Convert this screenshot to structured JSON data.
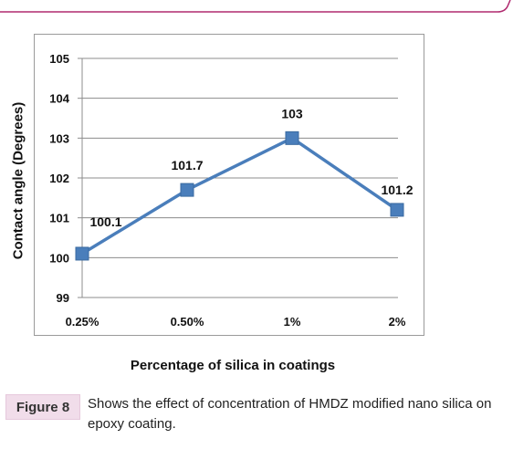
{
  "chart_data": {
    "type": "line",
    "categories": [
      "0.25%",
      "0.50%",
      "1%",
      "2%"
    ],
    "series": [
      {
        "values": [
          100.1,
          101.7,
          103,
          101.2
        ],
        "labels": [
          "100.1",
          "101.7",
          "103",
          "101.2"
        ]
      }
    ],
    "title": "",
    "xlabel": "Percentage of silica in coatings",
    "ylabel": "Contact angle (Degrees)",
    "ylim": [
      99,
      105
    ],
    "yticks": [
      "99",
      "100",
      "101",
      "102",
      "103",
      "104",
      "105"
    ],
    "grid": true,
    "legend": "none",
    "line_color": "#4a7ebb"
  },
  "caption": {
    "tag": "Figure 8",
    "text": "Shows the effect of concentration of HMDZ modified nano silica on epoxy coating."
  },
  "colors": {
    "accent": "#b02a6f",
    "tag_bg": "#f1ddea"
  }
}
